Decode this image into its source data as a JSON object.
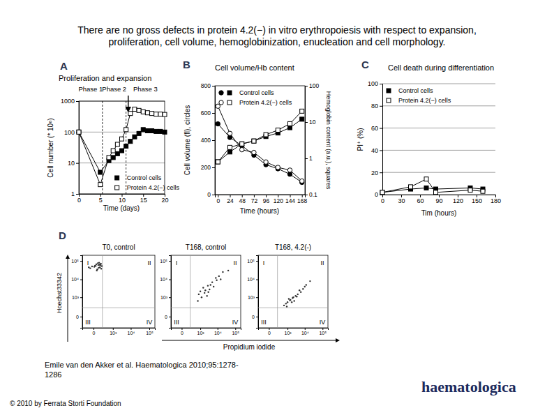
{
  "title": [
    "There are no gross defects in protein 4.2(−) in vitro erythropoiesis with respect to expansion,",
    "proliferation, cell volume, hemoglobinization, enucleation and cell morphology."
  ],
  "citation": [
    "Emile van den Akker et al. Haematologica 2010;95:1278-",
    "1286"
  ],
  "copyright": "© 2010 by Ferrata Storti Foundation",
  "logo": "haematologica",
  "chart_data": [
    {
      "type": "line",
      "panel": "A",
      "title": "Proliferation and expansion",
      "annotations": [
        "Phase 1",
        "Phase 2",
        "Phase 3"
      ],
      "phase_boundaries": [
        5.5,
        11
      ],
      "arrow": 11.5,
      "x_label": "Time (days)",
      "y_label": "Cell number (* 10⁶)",
      "x": [
        0,
        5,
        7,
        8,
        9,
        10,
        11,
        12,
        13,
        14,
        15,
        16,
        17,
        18,
        19,
        20
      ],
      "xlim": [
        0,
        20
      ],
      "xticks": [
        0,
        5,
        10,
        15,
        20
      ],
      "ylim": [
        1,
        1000
      ],
      "yticks": [
        1,
        10,
        100,
        1000
      ],
      "log": "y",
      "grid": true,
      "legend": "lower right",
      "series": [
        {
          "name": "Control cells",
          "color": "#000000",
          "marker": "square",
          "line_style": "solid",
          "values": [
            100,
            5,
            12,
            15,
            20,
            25,
            35,
            50,
            70,
            90,
            120,
            110,
            110,
            105,
            105,
            100
          ]
        },
        {
          "name": "Protein 4.2(−) cells",
          "color": "#000000",
          "marker": "square-open",
          "line_style": "solid",
          "values": [
            100,
            2,
            15,
            25,
            40,
            60,
            120,
            400,
            550,
            500,
            450,
            420,
            400,
            380,
            380,
            370
          ]
        }
      ]
    },
    {
      "type": "line",
      "panel": "B",
      "title": "Cell volume/Hb content",
      "x_label": "Time (hours)",
      "y_label": "Cell volume (fl), circles",
      "y2_label": "Hemoglobin content (a.u.), squares",
      "x": [
        0,
        24,
        48,
        72,
        96,
        120,
        144,
        168
      ],
      "xlim": [
        -6,
        174
      ],
      "xticks": [
        0,
        24,
        48,
        72,
        96,
        120,
        144,
        168
      ],
      "ylim": [
        0,
        800
      ],
      "yticks": [
        0,
        200,
        400,
        600,
        800
      ],
      "y2lim": [
        0.1,
        100
      ],
      "y2ticks": [
        0.1,
        1,
        10,
        100
      ],
      "log": "y2",
      "legend": "upper left",
      "series": [
        {
          "name": "Control cells",
          "color": "#000000",
          "marker": "circle",
          "line_style": "solid",
          "values": [
            520,
            420,
            360,
            290,
            220,
            190,
            150,
            90
          ]
        },
        {
          "name": "Protein 4.2(−) cells",
          "color": "#000000",
          "marker": "circle-open",
          "line_style": "solid",
          "values": [
            650,
            450,
            330,
            310,
            240,
            200,
            180,
            100
          ]
        },
        {
          "name": "Control cells",
          "color": "#000000",
          "marker": "square",
          "line_style": "solid",
          "axis": "y2",
          "values": [
            0.8,
            1.5,
            2.5,
            3,
            4,
            5,
            7,
            12
          ]
        },
        {
          "name": "Protein 4.2(−) cells",
          "color": "#000000",
          "marker": "square-open",
          "line_style": "solid",
          "axis": "y2",
          "values": [
            0.8,
            2,
            2.5,
            3,
            4.5,
            6,
            9,
            20
          ]
        }
      ]
    },
    {
      "type": "line",
      "panel": "C",
      "title": "Cell death during differentiation",
      "x_label": "Tim (hours)",
      "y_label": "PI⁺ (%)",
      "x": [
        0,
        45,
        70,
        85,
        140,
        160
      ],
      "xlim": [
        0,
        180
      ],
      "xticks": [
        0,
        30,
        60,
        90,
        120,
        150,
        180
      ],
      "ylim": [
        0,
        100
      ],
      "yticks": [
        0,
        20,
        40,
        60,
        80,
        100
      ],
      "grid": true,
      "legend": "upper left",
      "series": [
        {
          "name": "Control cells",
          "color": "#000000",
          "marker": "square",
          "line_style": "solid",
          "values": [
            2,
            5,
            6,
            5,
            6,
            5
          ]
        },
        {
          "name": "Protein 4.2(−) cells",
          "color": "#000000",
          "marker": "square-open",
          "line_style": "solid",
          "values": [
            2,
            7,
            14,
            2,
            4,
            3
          ]
        }
      ]
    },
    {
      "type": "scatter",
      "panel": "D",
      "title": "T0, control",
      "y_label": "Hoechst33342",
      "annotations": [
        "I",
        "II",
        "III",
        "IV"
      ],
      "gate_x": 200,
      "gate_y": 200,
      "color": "#333333",
      "marker": "dot",
      "log": true,
      "xlim": [
        -300,
        200000
      ],
      "ylim": [
        -300,
        200000
      ],
      "xticks": [
        0,
        {
          "value": 1000,
          "label": "10³"
        },
        {
          "value": 10000,
          "label": "10⁴"
        },
        {
          "value": 100000,
          "label": "10⁵"
        }
      ],
      "yticks": [
        0,
        {
          "value": 1000,
          "label": "10³"
        },
        {
          "value": 10000,
          "label": "10⁴"
        },
        {
          "value": 100000,
          "label": "10⁵"
        }
      ],
      "x": [
        -50,
        20,
        80,
        120,
        150,
        60,
        -20,
        100,
        180,
        40,
        90,
        130,
        10,
        70,
        160,
        110,
        50,
        -80,
        140,
        30
      ],
      "values": [
        40000,
        55000,
        60000,
        45000,
        70000,
        35000,
        50000,
        80000,
        52000,
        65000,
        42000,
        58000,
        48000,
        75000,
        38000,
        62000,
        30000,
        45000,
        68000,
        53000
      ]
    },
    {
      "type": "scatter",
      "title": "T168, control",
      "x_label": "Propidium iodide",
      "annotations": [
        "I",
        "II",
        "III",
        "IV"
      ],
      "gate_x": 200,
      "gate_y": 200,
      "color": "#333333",
      "marker": "dot",
      "log": true,
      "xlim": [
        -300,
        200000
      ],
      "ylim": [
        -300,
        200000
      ],
      "xticks": [
        0,
        {
          "value": 1000,
          "label": "10³"
        },
        {
          "value": 10000,
          "label": "10⁴"
        },
        {
          "value": 100000,
          "label": "10⁵"
        }
      ],
      "yticks": [
        0,
        {
          "value": 1000,
          "label": "10³"
        },
        {
          "value": 10000,
          "label": "10⁴"
        },
        {
          "value": 100000,
          "label": "10⁵"
        }
      ],
      "x": [
        800,
        1200,
        2000,
        3000,
        1500,
        4000,
        6000,
        2500,
        9000,
        12000,
        5000,
        700,
        1800,
        3500,
        20000,
        8000,
        1000,
        2800,
        15000,
        40000
      ],
      "values": [
        1500,
        1000,
        2500,
        2000,
        3500,
        5000,
        4000,
        1200,
        9000,
        15000,
        7000,
        600,
        1800,
        2800,
        25000,
        12000,
        2200,
        4500,
        10000,
        30000
      ]
    },
    {
      "type": "scatter",
      "title": "T168, 4.2(-)",
      "annotations": [
        "I",
        "II",
        "III",
        "IV"
      ],
      "gate_x": 200,
      "gate_y": 200,
      "color": "#333333",
      "marker": "dot",
      "log": true,
      "xlim": [
        -300,
        200000
      ],
      "ylim": [
        -300,
        200000
      ],
      "xticks": [
        0,
        {
          "value": 1000,
          "label": "10³"
        },
        {
          "value": 10000,
          "label": "10⁴"
        },
        {
          "value": 100000,
          "label": "10⁵"
        }
      ],
      "yticks": [
        0,
        {
          "value": 1000,
          "label": "10³"
        },
        {
          "value": 10000,
          "label": "10⁴"
        },
        {
          "value": 100000,
          "label": "10⁵"
        }
      ],
      "x": [
        600,
        1000,
        1500,
        2000,
        2500,
        3000,
        800,
        1200,
        4000,
        6000,
        8000,
        1800,
        2200,
        3500,
        12000,
        5000,
        900,
        1400,
        20000,
        10000
      ],
      "values": [
        300,
        500,
        700,
        900,
        600,
        1200,
        400,
        800,
        1500,
        2000,
        3000,
        500,
        1000,
        1100,
        5000,
        2500,
        250,
        650,
        8000,
        4000
      ]
    }
  ]
}
